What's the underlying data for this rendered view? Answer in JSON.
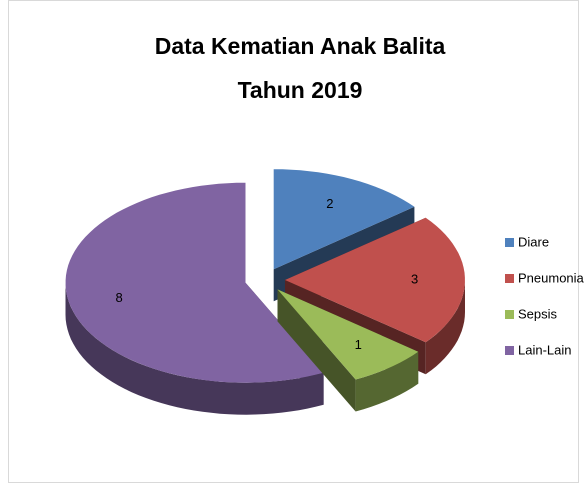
{
  "chart_data": {
    "type": "pie",
    "title": [
      "Data Kematian Anak Balita",
      "Tahun 2019"
    ],
    "categories": [
      "Diare",
      "Pneumonia",
      "Sepsis",
      "Lain-Lain"
    ],
    "values": [
      2,
      3,
      1,
      8
    ],
    "colors": [
      "#4f81bd",
      "#c0504d",
      "#9bbb59",
      "#8064a2"
    ],
    "legend": "right"
  }
}
